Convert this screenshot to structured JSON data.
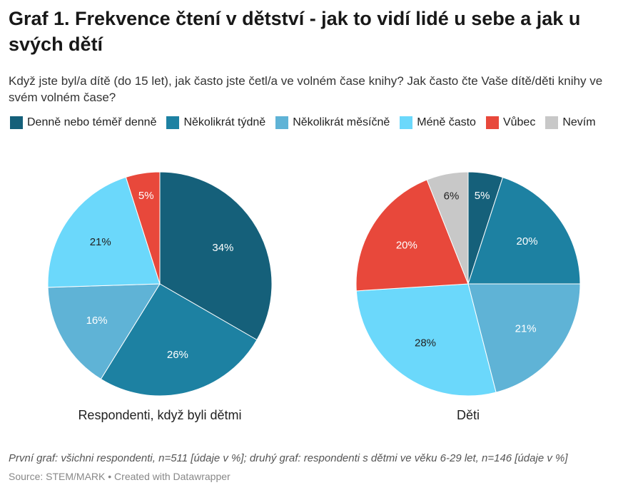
{
  "title": "Graf 1. Frekvence čtení v dětství - jak to vidí lidé u sebe a jak u svých dětí",
  "subtitle": "Když jste byl/a dítě (do 15 let), jak často jste četl/a ve volném čase knihy? Jak často čte Vaše dítě/děti knihy ve svém volném čase?",
  "notes": "První graf: všichni respondenti, n=511 [údaje v %]; druhý graf: respondenti s dětmi ve věku 6-29 let, n=146 [údaje v %]",
  "source": "Source: STEM/MARK • Created with Datawrapper",
  "chart_data": {
    "type": "pie",
    "legend_placement": "top",
    "categories": [
      "Denně nebo téměř denně",
      "Několikrát týdně",
      "Několikrát měsíčně",
      "Méně často",
      "Vůbec",
      "Nevím"
    ],
    "colors": [
      "#15607a",
      "#1d81a2",
      "#5fb3d6",
      "#6bd8fb",
      "#e8483b",
      "#c8c8c8"
    ],
    "charts": [
      {
        "label": "Respondenti, když byli dětmi",
        "values": [
          34,
          26,
          16,
          21,
          5,
          0
        ]
      },
      {
        "label": "Děti",
        "values": [
          5,
          20,
          21,
          28,
          20,
          6
        ]
      }
    ]
  }
}
